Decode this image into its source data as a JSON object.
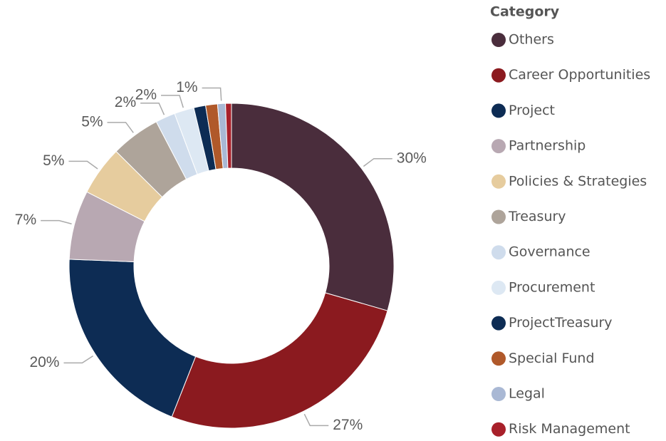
{
  "chart_data": {
    "type": "donut",
    "legend_title": "Category",
    "categories": [
      "Others",
      "Career Opportunities",
      "Project",
      "Partnership",
      "Policies & Strategies",
      "Treasury",
      "Governance",
      "Procurement",
      "ProjectTreasury",
      "Special Fund",
      "Legal",
      "Risk Management"
    ],
    "values": [
      30,
      27,
      20,
      7,
      5,
      5,
      2,
      2,
      1.2,
      1.2,
      0.8,
      0.6
    ],
    "value_labels": [
      "30%",
      "27%",
      "20%",
      "7%",
      "5%",
      "5%",
      "2%",
      "2%",
      null,
      null,
      "1%",
      null
    ],
    "colors": [
      "#4a2d3c",
      "#8b1a1f",
      "#0d2c54",
      "#b8a8b2",
      "#e6cc9e",
      "#aea49a",
      "#cfdcec",
      "#dde8f3",
      "#0d2c54",
      "#b0592a",
      "#a9b8d4",
      "#a8202a"
    ],
    "legend": "right"
  }
}
